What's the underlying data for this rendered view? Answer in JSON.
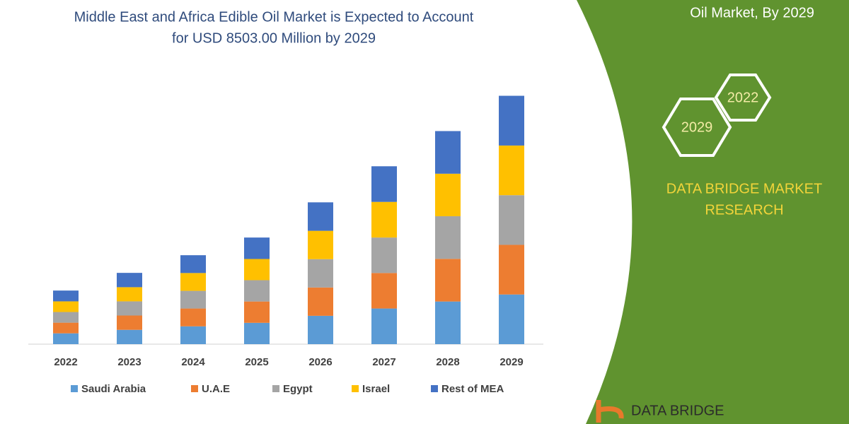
{
  "chart_data": {
    "type": "stacked-bar",
    "title": [
      "Middle East and Africa Edible Oil Market is Expected to Account",
      "for USD 8503.00 Million by 2029"
    ],
    "categories": [
      "2022",
      "2023",
      "2024",
      "2025",
      "2026",
      "2027",
      "2028",
      "2029"
    ],
    "series": [
      {
        "name": "Saudi Arabia",
        "color": "#5b9bd5",
        "values": [
          370,
          490,
          610,
          730,
          970,
          1220,
          1460,
          1700
        ]
      },
      {
        "name": "U.A.E",
        "color": "#ed7d31",
        "values": [
          365,
          490,
          610,
          730,
          970,
          1215,
          1460,
          1700
        ]
      },
      {
        "name": "Egypt",
        "color": "#a5a5a5",
        "values": [
          365,
          485,
          605,
          730,
          970,
          1215,
          1460,
          1700
        ]
      },
      {
        "name": "Israel",
        "color": "#ffc000",
        "values": [
          365,
          485,
          610,
          725,
          970,
          1220,
          1455,
          1700
        ]
      },
      {
        "name": "Rest of MEA",
        "color": "#4472c4",
        "values": [
          370,
          490,
          610,
          735,
          975,
          1220,
          1460,
          1703
        ]
      }
    ],
    "ylim": [
      0,
      9000
    ]
  },
  "side_panel": {
    "heading": "Oil Market, By 2029",
    "hex_small": "2022",
    "hex_large": "2029",
    "brand": [
      "DATA BRIDGE MARKET",
      "RESEARCH"
    ],
    "logo_text": "DATA BRIDGE"
  }
}
